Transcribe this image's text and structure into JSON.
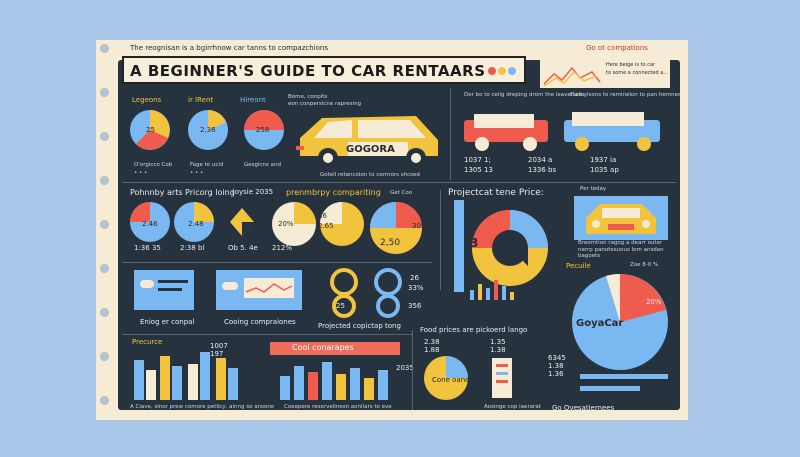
{
  "header": {
    "top_left": "The reognisan is a bgirrhnow car tanns to compazchions",
    "top_right": "Go ot compations",
    "title": "A BEGINNER'S GUIDE TO CAR RENTAARS"
  },
  "topright_panel": {
    "line1": "Here beige is to car",
    "line2": "to some a connected a..."
  },
  "row1": {
    "labels": {
      "a": "Legeons",
      "b": "ir IRent",
      "c": "Hireont"
    },
    "pie_values": {
      "a": "25",
      "b": "2,36",
      "c": "258"
    },
    "pie_notes": {
      "a": "O'orgicco Cob",
      "b": "Fage to ucid",
      "c": "Gesgicns and"
    },
    "car_brand": "GOGORA",
    "car_caption": "Gotell retancolon to cerrnors shcsed",
    "car_legend": {
      "line1": "Bome, conplts",
      "line2": "eon conperslcne rapresing"
    },
    "compare_text": "Der bo to celig dreping drom the leavertails",
    "compare_text2": "Cancylsons to reminelon  to pan  hemnes",
    "compare_vals": {
      "a": "1037 1;",
      "b": "2034 a",
      "c": "1937 ia"
    },
    "compare_vals2": {
      "a": "1305 13",
      "b": "1336 bs",
      "c": "1035 ap"
    }
  },
  "row2": {
    "left_title": "Pohnnby arts Pricorg loing",
    "left_title2": "(oysie 2035",
    "mid_title": "prenmbrpy compariting",
    "mid_sub": "Get Coo",
    "right_title": "Projectcat tene Price:",
    "right_tag": "Per teday",
    "pie_values": {
      "a": "2.46",
      "b": "2.48",
      "c": "20%",
      "d": "2.65",
      "e": "2,50",
      "f": "30%",
      "g": "36"
    },
    "pie_captions": {
      "a": "1:36 35",
      "b": "2:38 bl",
      "c": "Ob 5. 4e",
      "d": "212%"
    },
    "donut_value": "3",
    "car_note": "Breomtion ragog a dearr outer nerrp panotosuous lom ansdan bagoets"
  },
  "row3": {
    "left_cap1": "Eniog er conpal",
    "left_cap2": "Cooing compraiones",
    "mid_cap": "Projected copictap tong",
    "mid_vals": {
      "a": "25",
      "b": "33%",
      "c": "26",
      "d": "356"
    },
    "right_label": "Pecuile",
    "right_note": "Zoe 8-0 %"
  },
  "row4": {
    "left_title": "Precurce",
    "left_vals": {
      "a": "1007",
      "b": "197"
    },
    "left_caption": "A Ciave,  sinor prew comore petlicy, ainng so ansone",
    "mid_banner": "Cool conarapes",
    "mid_val": "2035",
    "mid_caption": "Coeapere reservelinesn aonllars to eve",
    "right_title": "Food prices are pickoerd lango",
    "right_vals": {
      "a": "2.38",
      "b": "1.88",
      "c": "1.35",
      "d": "1.38"
    },
    "pie_label": "Cone oane",
    "right_caption": "Aosinge cop laerarat",
    "brand_big": "GoyaCar",
    "brand_vals": {
      "a": "6345",
      "b": "1.38",
      "c": "1.36"
    },
    "brand_footer": "Go Ovesatiernees",
    "pie_big_note": "20%"
  },
  "colors": {
    "board": "#27323f",
    "yellow": "#f2c43d",
    "red": "#ef5b4d",
    "blue": "#79b8f0",
    "cream": "#f6ecd6"
  }
}
